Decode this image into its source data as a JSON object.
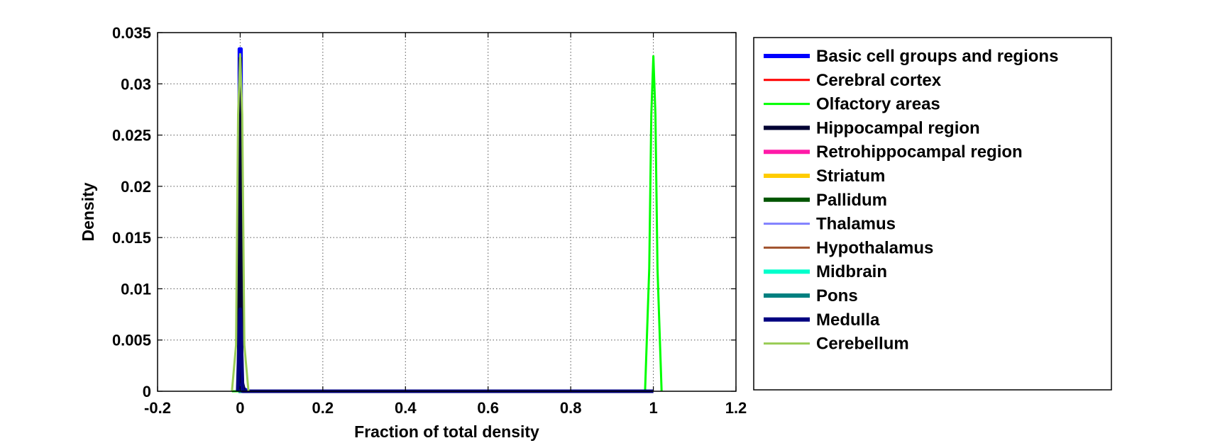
{
  "chart_data": {
    "type": "line",
    "title": "",
    "xlabel": "Fraction of total density",
    "ylabel": "Density",
    "xlim": [
      -0.2,
      1.2
    ],
    "ylim": [
      0,
      0.035
    ],
    "xticks": [
      "-0.2",
      "0",
      "0.2",
      "0.4",
      "0.6",
      "0.8",
      "1",
      "1.2"
    ],
    "yticks": [
      "0",
      "0.005",
      "0.01",
      "0.015",
      "0.02",
      "0.025",
      "0.03",
      "0.035"
    ],
    "grid": true,
    "legend_position": "outside-right",
    "series": [
      {
        "name": "Basic cell groups and regions",
        "color": "#0000ff",
        "thick": true,
        "x": [
          -0.003,
          -0.002,
          0.0,
          0.002,
          0.003,
          0.006,
          0.02,
          1.0
        ],
        "y": [
          0.0,
          0.0334,
          0.0334,
          0.0334,
          0.0,
          0.0003,
          0.0,
          0.0
        ]
      },
      {
        "name": "Cerebral cortex",
        "color": "#ff0000",
        "thick": false,
        "x": [
          -0.01,
          -0.003,
          0.0,
          0.003,
          0.01,
          1.0
        ],
        "y": [
          0.0,
          0.0,
          0.0,
          0.0,
          0.0,
          0.0
        ]
      },
      {
        "name": "Olfactory areas",
        "color": "#00ff00",
        "thick": false,
        "x": [
          -0.02,
          0.9,
          0.98,
          0.99,
          0.995,
          1.0,
          1.005,
          1.01,
          1.02
        ],
        "y": [
          0.0,
          0.0,
          0.0,
          0.012,
          0.027,
          0.0327,
          0.027,
          0.012,
          0.0
        ]
      },
      {
        "name": "Hippocampal region",
        "color": "#000033",
        "thick": true,
        "x": [
          -0.004,
          -0.002,
          0.0,
          0.002,
          0.004,
          0.01,
          0.02
        ],
        "y": [
          0.0,
          0.012,
          0.0325,
          0.012,
          0.001,
          0.0,
          0.0
        ]
      },
      {
        "name": "Retrohippocampal region",
        "color": "#ff1aa8",
        "thick": true,
        "x": [
          -0.004,
          0.0,
          0.004
        ],
        "y": [
          0.0,
          0.0,
          0.0
        ]
      },
      {
        "name": "Striatum",
        "color": "#ffcc00",
        "thick": true,
        "x": [
          -0.004,
          0.0,
          0.004
        ],
        "y": [
          0.0,
          0.0,
          0.0
        ]
      },
      {
        "name": "Pallidum",
        "color": "#005500",
        "thick": true,
        "x": [
          -0.004,
          0.0,
          0.004
        ],
        "y": [
          0.0,
          0.0,
          0.0
        ]
      },
      {
        "name": "Thalamus",
        "color": "#8080ff",
        "thick": false,
        "x": [
          -0.004,
          0.0,
          0.004
        ],
        "y": [
          0.0,
          0.0,
          0.0
        ]
      },
      {
        "name": "Hypothalamus",
        "color": "#a0522d",
        "thick": false,
        "x": [
          -0.004,
          0.0,
          0.004
        ],
        "y": [
          0.0,
          0.0,
          0.0
        ]
      },
      {
        "name": "Midbrain",
        "color": "#00ffcc",
        "thick": true,
        "x": [
          -0.004,
          0.0,
          0.004
        ],
        "y": [
          0.0,
          0.0,
          0.0
        ]
      },
      {
        "name": "Pons",
        "color": "#008080",
        "thick": true,
        "x": [
          -0.004,
          0.0,
          0.004
        ],
        "y": [
          0.0,
          0.0,
          0.0
        ]
      },
      {
        "name": "Medulla",
        "color": "#000080",
        "thick": true,
        "x": [
          -0.006,
          -0.002,
          0.0,
          0.002,
          0.006,
          0.02,
          1.0
        ],
        "y": [
          0.0,
          0.006,
          0.008,
          0.006,
          0.0,
          0.0,
          0.0
        ]
      },
      {
        "name": "Cerebellum",
        "color": "#99cc55",
        "thick": false,
        "x": [
          -0.02,
          -0.01,
          -0.005,
          0.0,
          0.005,
          0.01,
          0.02
        ],
        "y": [
          0.0,
          0.0045,
          0.027,
          0.0329,
          0.027,
          0.0045,
          0.0
        ]
      }
    ]
  }
}
